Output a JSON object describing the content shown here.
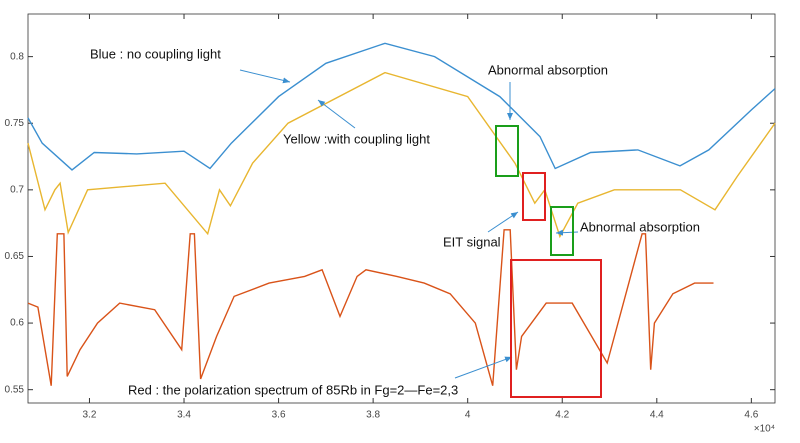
{
  "chart_data": {
    "type": "line",
    "xlim": [
      3.07,
      4.65
    ],
    "ylim": [
      0.54,
      0.832
    ],
    "xticks": [
      3.2,
      3.4,
      3.6,
      3.8,
      4,
      4.2,
      4.4,
      4.6
    ],
    "yticks": [
      0.55,
      0.6,
      0.65,
      0.7,
      0.75,
      0.8
    ],
    "x_exponent_label": "×10⁴",
    "series": [
      {
        "color": "#3b8fd0",
        "x": [
          3.07,
          3.1,
          3.163,
          3.21,
          3.3,
          3.4,
          3.455,
          3.5,
          3.6,
          3.7,
          3.825,
          3.93,
          4.068,
          4.153,
          4.185,
          4.26,
          4.36,
          4.449,
          4.51,
          4.6,
          4.65
        ],
        "values": [
          0.754,
          0.735,
          0.715,
          0.728,
          0.727,
          0.729,
          0.716,
          0.735,
          0.77,
          0.795,
          0.81,
          0.8,
          0.77,
          0.74,
          0.716,
          0.728,
          0.73,
          0.718,
          0.73,
          0.76,
          0.776
        ]
      },
      {
        "color": "#e8b630",
        "x": [
          3.07,
          3.106,
          3.127,
          3.138,
          3.155,
          3.196,
          3.36,
          3.45,
          3.475,
          3.498,
          3.545,
          3.62,
          3.825,
          4.0,
          4.06,
          4.1,
          4.142,
          4.163,
          4.195,
          4.233,
          4.31,
          4.45,
          4.523,
          4.57,
          4.65
        ],
        "values": [
          0.735,
          0.685,
          0.7,
          0.705,
          0.668,
          0.7,
          0.705,
          0.667,
          0.7,
          0.688,
          0.72,
          0.75,
          0.788,
          0.77,
          0.74,
          0.72,
          0.69,
          0.7,
          0.665,
          0.69,
          0.7,
          0.7,
          0.685,
          0.71,
          0.75
        ]
      },
      {
        "color": "#d95319",
        "x": [
          3.07,
          3.091,
          3.119,
          3.132,
          3.146,
          3.153,
          3.18,
          3.217,
          3.264,
          3.338,
          3.395,
          3.413,
          3.422,
          3.435,
          3.469,
          3.506,
          3.58,
          3.655,
          3.692,
          3.73,
          3.766,
          3.785,
          3.85,
          3.908,
          3.963,
          4.016,
          4.053,
          4.077,
          4.09,
          4.103,
          4.114,
          4.166,
          4.221,
          4.295,
          4.369,
          4.376,
          4.387,
          4.395,
          4.434,
          4.48,
          4.52
        ],
        "values": [
          0.615,
          0.612,
          0.553,
          0.667,
          0.667,
          0.56,
          0.58,
          0.6,
          0.615,
          0.61,
          0.58,
          0.667,
          0.667,
          0.558,
          0.59,
          0.62,
          0.63,
          0.635,
          0.64,
          0.605,
          0.635,
          0.64,
          0.635,
          0.63,
          0.622,
          0.6,
          0.553,
          0.67,
          0.67,
          0.565,
          0.59,
          0.615,
          0.615,
          0.57,
          0.667,
          0.667,
          0.565,
          0.6,
          0.622,
          0.63,
          0.63
        ]
      }
    ],
    "annotations": [
      "Blue : no coupling light",
      "Yellow :with coupling light",
      "Abnormal absorption",
      "EIT signal",
      "Abnormal absorption",
      "Red : the polarization spectrum of 85Rb in Fg=2—Fe=2,3"
    ]
  }
}
